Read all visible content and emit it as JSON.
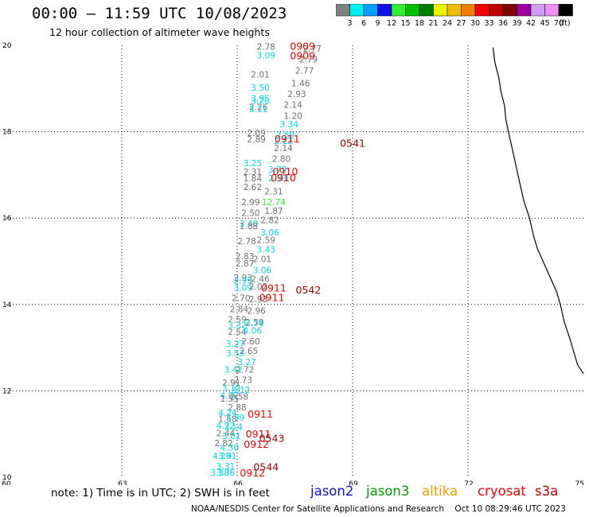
{
  "header": {
    "title": "00:00 – 11:59 UTC 10/08/2023",
    "subtitle": "12 hour collection of altimeter wave heights"
  },
  "legend": {
    "unit": "(ft)",
    "bins": [
      {
        "label": "3",
        "color": "#808080"
      },
      {
        "label": "6",
        "color": "#00f0f0"
      },
      {
        "label": "9",
        "color": "#00a0ff"
      },
      {
        "label": "12",
        "color": "#1010e8"
      },
      {
        "label": "15",
        "color": "#30f030"
      },
      {
        "label": "18",
        "color": "#00c000"
      },
      {
        "label": "21",
        "color": "#008000"
      },
      {
        "label": "24",
        "color": "#f0f000"
      },
      {
        "label": "27",
        "color": "#f0c000"
      },
      {
        "label": "30",
        "color": "#f08000"
      },
      {
        "label": "33",
        "color": "#f00000"
      },
      {
        "label": "36",
        "color": "#c00000"
      },
      {
        "label": "39",
        "color": "#800000"
      },
      {
        "label": "42",
        "color": "#a000a0"
      },
      {
        "label": "45",
        "color": "#d0a0f0"
      },
      {
        "label": "70",
        "color": "#f090f0"
      },
      {
        "label": "",
        "color": "#000000"
      }
    ]
  },
  "note": "note:  1) Time is in UTC;  2) SWH is in feet",
  "satellites": [
    {
      "name": "jason2",
      "color": "#1010e0"
    },
    {
      "name": "jason3",
      "color": "#00a000"
    },
    {
      "name": "altika",
      "color": "#f0a000"
    },
    {
      "name": "cryosat",
      "color": "#f00000"
    },
    {
      "name": "s3a",
      "color": "#c00000"
    }
  ],
  "footer": {
    "credit": "NOAA/NESDIS Center for Satellite Applications and Research",
    "timestamp": "Oct 10 08:29:46 UTC 2023"
  },
  "chart_data": {
    "type": "scatter",
    "xlim": [
      60,
      75
    ],
    "ylim": [
      10,
      20
    ],
    "x_ticks": [
      "60",
      "63",
      "66",
      "69",
      "72",
      "75"
    ],
    "y_ticks": [
      "10",
      "12",
      "14",
      "16",
      "18",
      "20"
    ],
    "grid": true,
    "wave_heights": [
      {
        "x": 66.75,
        "y": 19.9,
        "label": "2.78",
        "color": "#707070"
      },
      {
        "x": 66.75,
        "y": 19.7,
        "label": "3.09",
        "color": "#00d8e8"
      },
      {
        "x": 67.95,
        "y": 19.85,
        "label": "2.77",
        "color": "#707070"
      },
      {
        "x": 67.85,
        "y": 19.6,
        "label": "2.79",
        "color": "#707070"
      },
      {
        "x": 67.75,
        "y": 19.35,
        "label": "2.77",
        "color": "#707070"
      },
      {
        "x": 66.6,
        "y": 19.25,
        "label": "2.01",
        "color": "#707070"
      },
      {
        "x": 67.65,
        "y": 19.05,
        "label": "1.46",
        "color": "#707070"
      },
      {
        "x": 66.6,
        "y": 18.95,
        "label": "3.50",
        "color": "#00d8e8"
      },
      {
        "x": 67.55,
        "y": 18.8,
        "label": "2.93",
        "color": "#707070"
      },
      {
        "x": 66.6,
        "y": 18.7,
        "label": "3.95",
        "color": "#00d8e8"
      },
      {
        "x": 66.6,
        "y": 18.65,
        "label": "3.20",
        "color": "#00d8e8"
      },
      {
        "x": 67.45,
        "y": 18.55,
        "label": "2.14",
        "color": "#707070"
      },
      {
        "x": 66.55,
        "y": 18.5,
        "label": "2.26",
        "color": "#707070"
      },
      {
        "x": 66.55,
        "y": 18.45,
        "label": "3.11",
        "color": "#00d8e8"
      },
      {
        "x": 67.45,
        "y": 18.3,
        "label": "1.20",
        "color": "#707070"
      },
      {
        "x": 67.35,
        "y": 18.1,
        "label": "3.34",
        "color": "#00d8e8"
      },
      {
        "x": 66.5,
        "y": 17.9,
        "label": "2.09",
        "color": "#707070"
      },
      {
        "x": 67.25,
        "y": 17.85,
        "label": "3.89",
        "color": "#00d8e8"
      },
      {
        "x": 66.5,
        "y": 17.75,
        "label": "2.89",
        "color": "#707070"
      },
      {
        "x": 67.2,
        "y": 17.72,
        "label": "2.12",
        "color": "#00d8e8"
      },
      {
        "x": 67.2,
        "y": 17.55,
        "label": "2.14",
        "color": "#707070"
      },
      {
        "x": 67.15,
        "y": 17.3,
        "label": "2.80",
        "color": "#707070"
      },
      {
        "x": 66.4,
        "y": 17.2,
        "label": "3.25",
        "color": "#00d8e8"
      },
      {
        "x": 67.05,
        "y": 17.05,
        "label": "3.79",
        "color": "#00d8e8"
      },
      {
        "x": 66.4,
        "y": 17.0,
        "label": "2.31",
        "color": "#707070"
      },
      {
        "x": 66.4,
        "y": 16.85,
        "label": "1.84",
        "color": "#707070"
      },
      {
        "x": 67.05,
        "y": 16.85,
        "label": "2.33",
        "color": "#00d8e8"
      },
      {
        "x": 66.4,
        "y": 16.65,
        "label": "2.62",
        "color": "#707070"
      },
      {
        "x": 66.95,
        "y": 16.55,
        "label": "2.31",
        "color": "#707070"
      },
      {
        "x": 66.35,
        "y": 16.3,
        "label": "2.99",
        "color": "#707070"
      },
      {
        "x": 66.95,
        "y": 16.3,
        "label": "12.74",
        "color": "#30f030"
      },
      {
        "x": 66.35,
        "y": 16.05,
        "label": "2.50",
        "color": "#707070"
      },
      {
        "x": 66.95,
        "y": 16.1,
        "label": "1.87",
        "color": "#707070"
      },
      {
        "x": 66.85,
        "y": 15.88,
        "label": "2.82",
        "color": "#707070"
      },
      {
        "x": 66.3,
        "y": 15.8,
        "label": "3.40",
        "color": "#00d8e8"
      },
      {
        "x": 66.3,
        "y": 15.75,
        "label": "1.88",
        "color": "#707070"
      },
      {
        "x": 66.85,
        "y": 15.6,
        "label": "3.06",
        "color": "#00d8e8"
      },
      {
        "x": 66.25,
        "y": 15.4,
        "label": "2.78",
        "color": "#707070"
      },
      {
        "x": 66.75,
        "y": 15.42,
        "label": "2.59",
        "color": "#707070"
      },
      {
        "x": 66.75,
        "y": 15.2,
        "label": "3.43",
        "color": "#00d8e8"
      },
      {
        "x": 66.2,
        "y": 15.05,
        "label": "2.83",
        "color": "#707070"
      },
      {
        "x": 66.65,
        "y": 14.98,
        "label": "2.01",
        "color": "#707070"
      },
      {
        "x": 66.2,
        "y": 14.88,
        "label": "2.87",
        "color": "#707070"
      },
      {
        "x": 66.65,
        "y": 14.72,
        "label": "3.06",
        "color": "#00d8e8"
      },
      {
        "x": 66.15,
        "y": 14.55,
        "label": "2.93",
        "color": "#707070"
      },
      {
        "x": 66.6,
        "y": 14.52,
        "label": "2.46",
        "color": "#707070"
      },
      {
        "x": 66.15,
        "y": 14.48,
        "label": "2.95",
        "color": "#00d8e8"
      },
      {
        "x": 66.15,
        "y": 14.32,
        "label": "3.09",
        "color": "#00d8e8"
      },
      {
        "x": 66.55,
        "y": 14.35,
        "label": "2.02",
        "color": "#707070"
      },
      {
        "x": 66.1,
        "y": 14.08,
        "label": "2.70",
        "color": "#707070"
      },
      {
        "x": 66.55,
        "y": 14.05,
        "label": "2.93",
        "color": "#707070"
      },
      {
        "x": 66.05,
        "y": 13.82,
        "label": "2.84",
        "color": "#707070"
      },
      {
        "x": 66.5,
        "y": 13.78,
        "label": "2.96",
        "color": "#707070"
      },
      {
        "x": 66.0,
        "y": 13.58,
        "label": "2.59",
        "color": "#707070"
      },
      {
        "x": 66.0,
        "y": 13.45,
        "label": "3.32",
        "color": "#00d8e8"
      },
      {
        "x": 66.45,
        "y": 13.52,
        "label": "2.59",
        "color": "#707070"
      },
      {
        "x": 66.45,
        "y": 13.5,
        "label": "3.74",
        "color": "#00d8e8"
      },
      {
        "x": 66.0,
        "y": 13.3,
        "label": "2.54",
        "color": "#707070"
      },
      {
        "x": 66.4,
        "y": 13.32,
        "label": "4.06",
        "color": "#00d8e8"
      },
      {
        "x": 66.35,
        "y": 13.08,
        "label": "2.60",
        "color": "#707070"
      },
      {
        "x": 65.95,
        "y": 13.02,
        "label": "3.27",
        "color": "#00d8e8"
      },
      {
        "x": 66.3,
        "y": 12.85,
        "label": "2.65",
        "color": "#707070"
      },
      {
        "x": 65.95,
        "y": 12.8,
        "label": "3.53",
        "color": "#00d8e8"
      },
      {
        "x": 66.25,
        "y": 12.6,
        "label": "3.27",
        "color": "#00d8e8"
      },
      {
        "x": 65.9,
        "y": 12.42,
        "label": "3.42",
        "color": "#00d8e8"
      },
      {
        "x": 66.2,
        "y": 12.42,
        "label": "2.72",
        "color": "#707070"
      },
      {
        "x": 66.15,
        "y": 12.18,
        "label": "2.73",
        "color": "#707070"
      },
      {
        "x": 65.85,
        "y": 12.12,
        "label": "2.91",
        "color": "#707070"
      },
      {
        "x": 65.85,
        "y": 12.0,
        "label": "3.13",
        "color": "#00d8e8"
      },
      {
        "x": 66.1,
        "y": 11.95,
        "label": "3.12",
        "color": "#00d8e8"
      },
      {
        "x": 65.8,
        "y": 11.82,
        "label": "4.92",
        "color": "#00d8e8"
      },
      {
        "x": 65.8,
        "y": 11.75,
        "label": "1.55",
        "color": "#707070"
      },
      {
        "x": 66.05,
        "y": 11.8,
        "label": "2.58",
        "color": "#707070"
      },
      {
        "x": 66.0,
        "y": 11.55,
        "label": "2.88",
        "color": "#707070"
      },
      {
        "x": 65.75,
        "y": 11.42,
        "label": "4.24",
        "color": "#00d8e8"
      },
      {
        "x": 65.75,
        "y": 11.28,
        "label": "1.58",
        "color": "#707070"
      },
      {
        "x": 65.95,
        "y": 11.32,
        "label": "2.89",
        "color": "#00d8e8"
      },
      {
        "x": 65.7,
        "y": 11.12,
        "label": "4.22",
        "color": "#00d8e8"
      },
      {
        "x": 65.9,
        "y": 11.1,
        "label": "3.14",
        "color": "#00d8e8"
      },
      {
        "x": 65.7,
        "y": 10.95,
        "label": "2.44",
        "color": "#707070"
      },
      {
        "x": 65.85,
        "y": 10.88,
        "label": "3.01",
        "color": "#00d8e8"
      },
      {
        "x": 65.65,
        "y": 10.72,
        "label": "2.82",
        "color": "#707070"
      },
      {
        "x": 65.8,
        "y": 10.62,
        "label": "4.30",
        "color": "#00d8e8"
      },
      {
        "x": 65.6,
        "y": 10.42,
        "label": "4.28",
        "color": "#00d8e8"
      },
      {
        "x": 65.75,
        "y": 10.42,
        "label": "3.91",
        "color": "#00d8e8"
      },
      {
        "x": 65.7,
        "y": 10.18,
        "label": "3.31",
        "color": "#00d8e8"
      },
      {
        "x": 65.55,
        "y": 10.04,
        "label": "3.38",
        "color": "#00d8e8"
      },
      {
        "x": 65.7,
        "y": 10.04,
        "label": "3.36",
        "color": "#00d8e8"
      }
    ],
    "time_labels": [
      {
        "x": 67.7,
        "y": 19.9,
        "label": "0909",
        "color": "#f00000"
      },
      {
        "x": 67.7,
        "y": 19.68,
        "label": "0909",
        "color": "#f00000"
      },
      {
        "x": 67.3,
        "y": 17.75,
        "label": "0911",
        "color": "#f00000"
      },
      {
        "x": 69.0,
        "y": 17.65,
        "label": "0541",
        "color": "#900000"
      },
      {
        "x": 67.25,
        "y": 17.0,
        "label": "0910",
        "color": "#f00000"
      },
      {
        "x": 67.2,
        "y": 16.85,
        "label": "0910",
        "color": "#f00000"
      },
      {
        "x": 66.95,
        "y": 14.3,
        "label": "0911",
        "color": "#f00000"
      },
      {
        "x": 67.85,
        "y": 14.25,
        "label": "0542",
        "color": "#900000"
      },
      {
        "x": 66.9,
        "y": 14.08,
        "label": "0911",
        "color": "#f00000"
      },
      {
        "x": 66.6,
        "y": 11.38,
        "label": "0911",
        "color": "#f00000"
      },
      {
        "x": 66.55,
        "y": 10.92,
        "label": "0911",
        "color": "#f00000"
      },
      {
        "x": 66.9,
        "y": 10.82,
        "label": "0543",
        "color": "#900000"
      },
      {
        "x": 66.5,
        "y": 10.68,
        "label": "0912",
        "color": "#f00000"
      },
      {
        "x": 66.75,
        "y": 10.16,
        "label": "0544",
        "color": "#900000"
      },
      {
        "x": 66.4,
        "y": 10.02,
        "label": "0912",
        "color": "#f00000"
      }
    ],
    "coastline": [
      [
        72.65,
        19.95
      ],
      [
        72.7,
        19.6
      ],
      [
        72.8,
        19.25
      ],
      [
        72.85,
        18.95
      ],
      [
        72.95,
        18.6
      ],
      [
        72.98,
        18.3
      ],
      [
        73.05,
        18.0
      ],
      [
        73.15,
        17.6
      ],
      [
        73.25,
        17.2
      ],
      [
        73.35,
        16.8
      ],
      [
        73.45,
        16.4
      ],
      [
        73.6,
        16.0
      ],
      [
        73.7,
        15.6
      ],
      [
        73.8,
        15.3
      ],
      [
        73.95,
        15.0
      ],
      [
        74.1,
        14.7
      ],
      [
        74.3,
        14.3
      ],
      [
        74.4,
        14.0
      ],
      [
        74.5,
        13.6
      ],
      [
        74.65,
        13.2
      ],
      [
        74.75,
        12.9
      ],
      [
        74.85,
        12.6
      ],
      [
        75.0,
        12.4
      ]
    ]
  }
}
